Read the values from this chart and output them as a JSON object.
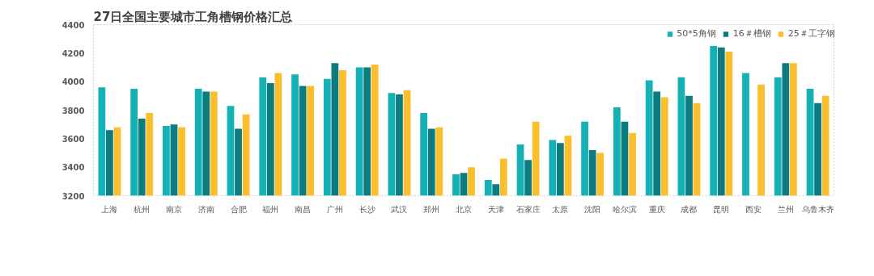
{
  "chart_data": {
    "type": "bar",
    "title": "27日全国主要城市工角槽钢价格汇总",
    "categories": [
      "上海",
      "杭州",
      "南京",
      "济南",
      "合肥",
      "福州",
      "南昌",
      "广州",
      "长沙",
      "武汉",
      "郑州",
      "北京",
      "天津",
      "石家庄",
      "太原",
      "沈阳",
      "哈尔滨",
      "重庆",
      "成都",
      "昆明",
      "西安",
      "兰州",
      "乌鲁木齐"
    ],
    "series": [
      {
        "name": "50*5角钢",
        "color": "#14b1b5",
        "values": [
          3960,
          3950,
          3690,
          3950,
          3830,
          4030,
          4050,
          4020,
          4100,
          3920,
          3780,
          3350,
          3310,
          3560,
          3590,
          3720,
          3820,
          4010,
          4030,
          4250,
          4060,
          4030,
          3950
        ]
      },
      {
        "name": "16＃槽钢",
        "color": "#0d7c80",
        "values": [
          3660,
          3740,
          3700,
          3930,
          3670,
          3990,
          3970,
          4130,
          4100,
          3910,
          3670,
          3360,
          3280,
          3450,
          3570,
          3520,
          3720,
          3930,
          3900,
          4240,
          null,
          4130,
          3850
        ]
      },
      {
        "name": "25＃工字钢",
        "color": "#fbbf2d",
        "values": [
          3680,
          3780,
          3680,
          3930,
          3770,
          4060,
          3970,
          4080,
          4120,
          3940,
          3680,
          3400,
          3460,
          3720,
          3620,
          3500,
          3640,
          3890,
          3850,
          4210,
          3980,
          4130,
          3900
        ]
      }
    ],
    "ylim": [
      3200,
      4400
    ],
    "yticks": [
      3200,
      3400,
      3600,
      3800,
      4000,
      4200,
      4400
    ],
    "grid": false,
    "legend": "top right"
  }
}
